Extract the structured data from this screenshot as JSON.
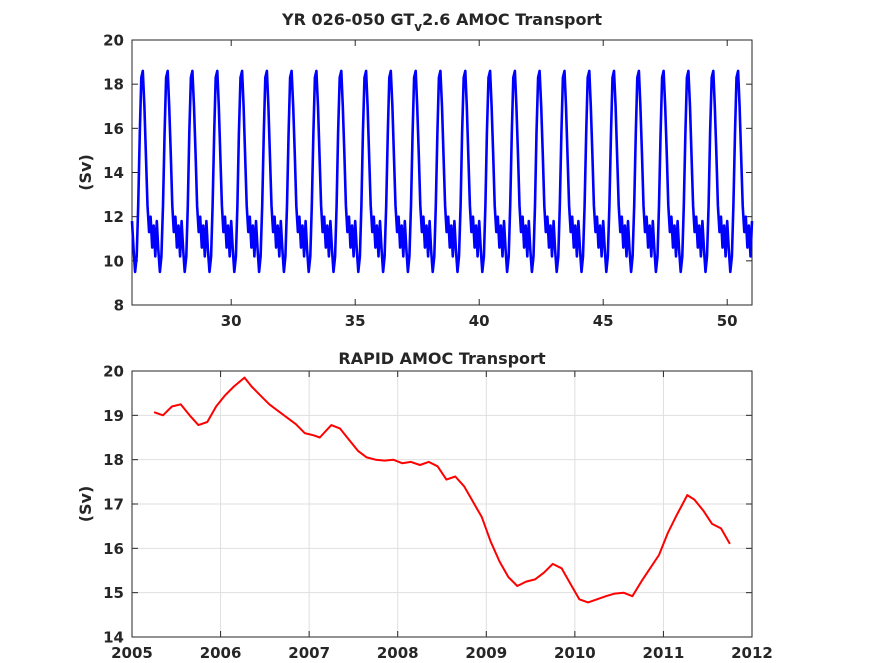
{
  "chart_data": [
    {
      "type": "line",
      "title_prefix": "YR 026-050 GT",
      "title_subscript": "v",
      "title_suffix": "2.6 AMOC Transport",
      "xlabel": "",
      "ylabel": "(Sv)",
      "xlim": [
        26,
        51
      ],
      "ylim": [
        8,
        20
      ],
      "xticks": [
        30,
        35,
        40,
        45,
        50
      ],
      "yticks": [
        8,
        10,
        12,
        14,
        16,
        18,
        20
      ],
      "grid": false,
      "color": "#0000ff",
      "series": [
        {
          "x_start": 26,
          "x_end": 51,
          "cycle_length_years": 1,
          "cycle_values": [
            11.8,
            10.5,
            9.5,
            10.2,
            12.5,
            15.8,
            18.3,
            18.6,
            17.0,
            14.8,
            12.5,
            11.3,
            12.0,
            10.6,
            11.6,
            10.2
          ]
        }
      ]
    },
    {
      "type": "line",
      "title": "RAPID AMOC Transport",
      "xlabel": "",
      "ylabel": "(Sv)",
      "xlim": [
        2005,
        2012
      ],
      "ylim": [
        14,
        20
      ],
      "xticks": [
        2005,
        2006,
        2007,
        2008,
        2009,
        2010,
        2011,
        2012
      ],
      "yticks": [
        14,
        15,
        16,
        17,
        18,
        19,
        20
      ],
      "grid": true,
      "color": "#ff0000",
      "series": [
        {
          "x": [
            2005.25,
            2005.35,
            2005.45,
            2005.55,
            2005.65,
            2005.75,
            2005.85,
            2005.95,
            2006.05,
            2006.15,
            2006.27,
            2006.35,
            2006.45,
            2006.55,
            2006.65,
            2006.75,
            2006.85,
            2006.95,
            2007.05,
            2007.12,
            2007.25,
            2007.35,
            2007.45,
            2007.55,
            2007.65,
            2007.75,
            2007.85,
            2007.95,
            2008.05,
            2008.15,
            2008.25,
            2008.35,
            2008.45,
            2008.55,
            2008.65,
            2008.75,
            2008.85,
            2008.95,
            2009.05,
            2009.15,
            2009.25,
            2009.35,
            2009.45,
            2009.55,
            2009.65,
            2009.75,
            2009.85,
            2009.95,
            2010.05,
            2010.15,
            2010.25,
            2010.35,
            2010.45,
            2010.55,
            2010.65,
            2010.75,
            2010.85,
            2010.95,
            2011.05,
            2011.15,
            2011.27,
            2011.35,
            2011.45,
            2011.55,
            2011.65,
            2011.75
          ],
          "y": [
            19.07,
            19.0,
            19.2,
            19.25,
            19.0,
            18.78,
            18.85,
            19.2,
            19.45,
            19.65,
            19.85,
            19.65,
            19.45,
            19.25,
            19.1,
            18.95,
            18.8,
            18.6,
            18.55,
            18.5,
            18.78,
            18.7,
            18.45,
            18.2,
            18.05,
            18.0,
            17.98,
            18.0,
            17.92,
            17.95,
            17.88,
            17.95,
            17.85,
            17.55,
            17.62,
            17.4,
            17.05,
            16.7,
            16.15,
            15.7,
            15.35,
            15.15,
            15.25,
            15.3,
            15.45,
            15.65,
            15.55,
            15.2,
            14.85,
            14.78,
            14.85,
            14.92,
            14.98,
            15.0,
            14.92,
            15.25,
            15.55,
            15.85,
            16.35,
            16.75,
            17.2,
            17.1,
            16.85,
            16.55,
            16.45,
            16.1
          ]
        }
      ]
    }
  ]
}
